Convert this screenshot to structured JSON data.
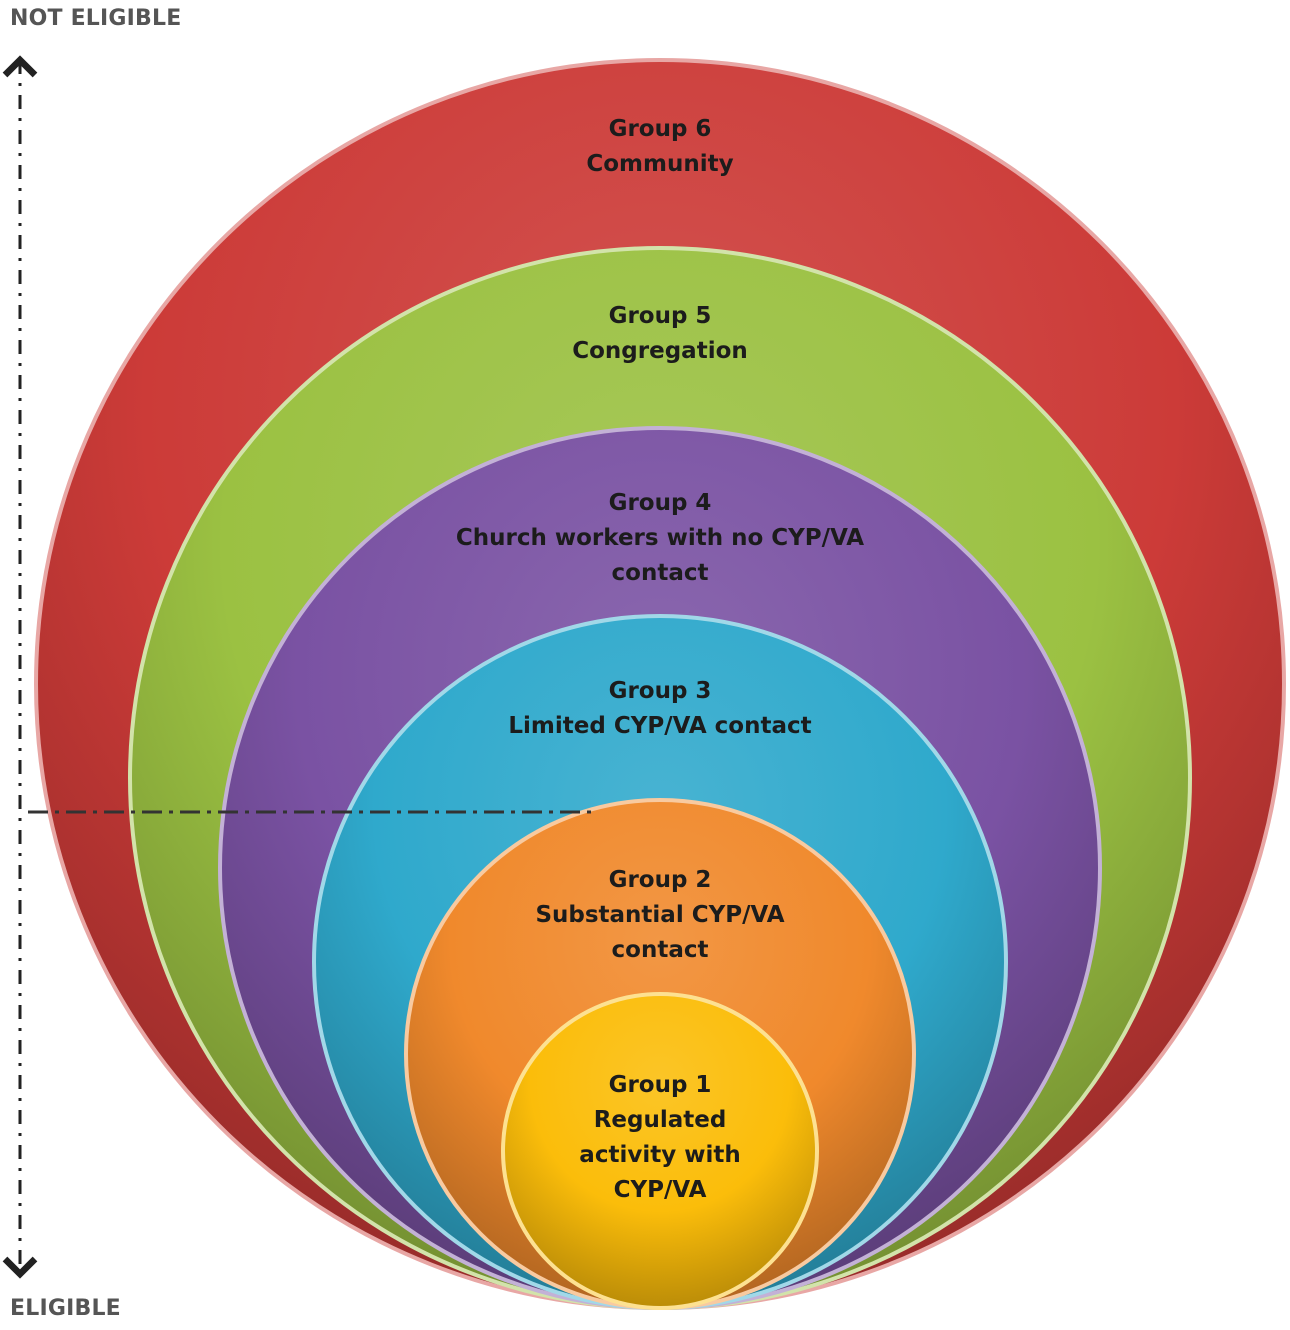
{
  "scale": {
    "top_label": "NOT ELIGIBLE",
    "bottom_label": "ELIGIBLE"
  },
  "groups": [
    {
      "id": "group-6",
      "color": "#cc3b38",
      "lines": [
        "Group 6",
        "Community"
      ]
    },
    {
      "id": "group-5",
      "color": "#9bc142",
      "lines": [
        "Group 5",
        "Congregation"
      ]
    },
    {
      "id": "group-4",
      "color": "#7a52a3",
      "lines": [
        "Group 4",
        "Church workers with no CYP/VA",
        "contact"
      ]
    },
    {
      "id": "group-3",
      "color": "#2fa9cc",
      "lines": [
        "Group 3",
        "Limited CYP/VA contact"
      ]
    },
    {
      "id": "group-2",
      "color": "#f0892c",
      "lines": [
        "Group 2",
        "Substantial CYP/VA",
        "contact"
      ]
    },
    {
      "id": "group-1",
      "color": "#fbbd0a",
      "lines": [
        "Group 1",
        "Regulated",
        "activity with",
        "CYP/VA"
      ]
    }
  ]
}
